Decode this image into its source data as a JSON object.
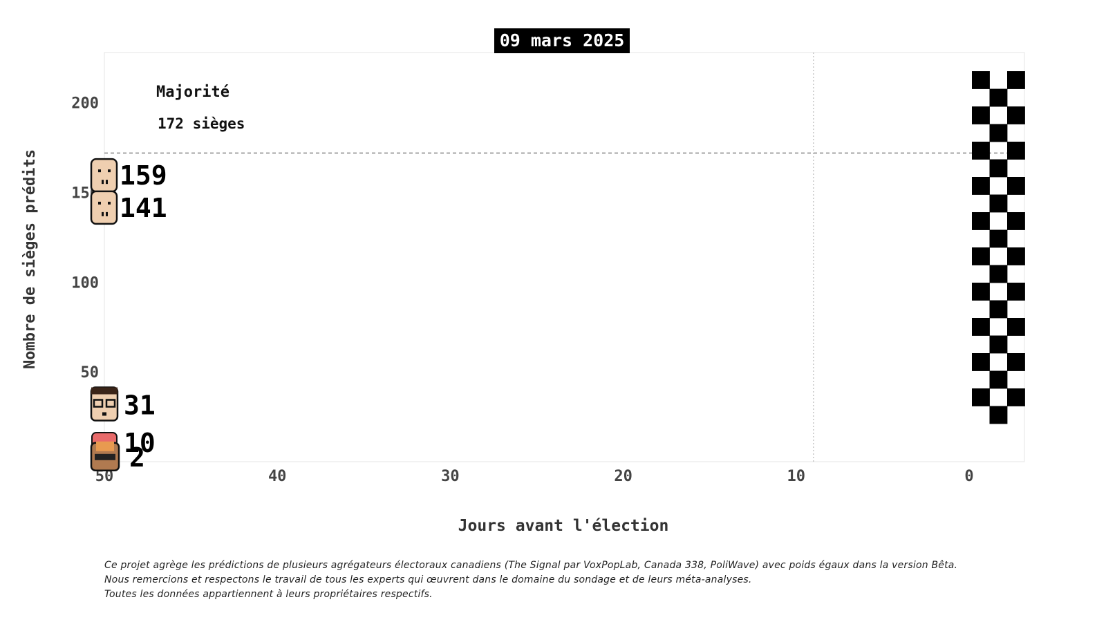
{
  "header": {
    "date": "09 mars 2025"
  },
  "majority": {
    "label": "Majorité",
    "seats_text": "172 sièges"
  },
  "footnote": {
    "lines": [
      "Ce projet agrège les prédictions de plusieurs agrégateurs électoraux canadiens (The Signal par VoxPopLab, Canada 338, PoliWave) avec poids égaux dans la version Bêta.",
      "Nous remercions et respectons le travail de tous les experts qui œuvrent dans le domaine du sondage et de leurs méta-analyses.",
      "Toutes les données appartiennent à leurs propriétaires respectifs."
    ]
  },
  "colors": {
    "frame": "#e6e6e6",
    "majority_line": "#777777",
    "gridline": "#bbbbbb",
    "checker": "#000000",
    "skin": "#efcfb0",
    "shirt_red": "#e86a6a",
    "hair_dark": "#3a2418",
    "hair_orange": "#e89a50"
  },
  "chart_data": {
    "type": "scatter",
    "xlabel": "Jours avant l'élection",
    "ylabel": "Nombre de sièges prédits",
    "xlim": [
      50,
      0
    ],
    "ylim": [
      0,
      228
    ],
    "xticks": [
      50,
      40,
      30,
      20,
      10,
      0
    ],
    "yticks": [
      50,
      100,
      150,
      200
    ],
    "majority_seats": 172,
    "current_day": 50,
    "vertical_marker_day": 9,
    "finish_line": "checkered flag at day 0",
    "series": [
      {
        "value": 159,
        "avatar": "pale"
      },
      {
        "value": 141,
        "avatar": "pale"
      },
      {
        "value": 31,
        "avatar": "glasses"
      },
      {
        "value": 10,
        "avatar": "red"
      },
      {
        "value": 2,
        "avatar": "orange"
      }
    ]
  }
}
